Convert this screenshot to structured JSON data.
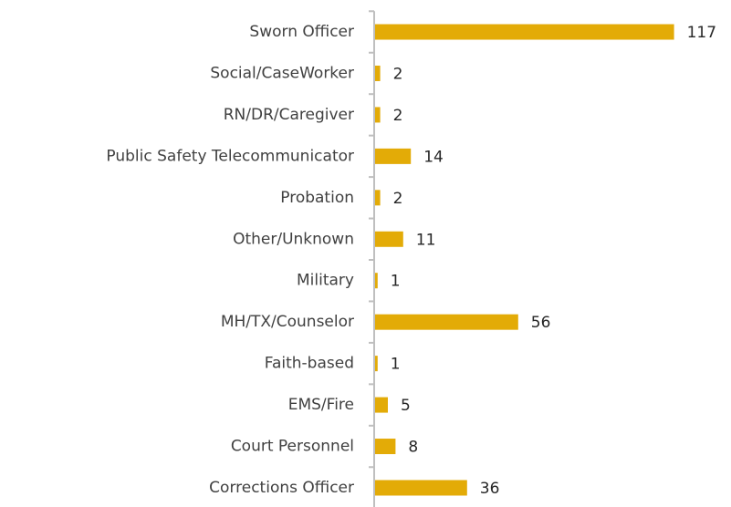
{
  "chart_data": {
    "type": "bar",
    "orientation": "horizontal",
    "categories": [
      "Sworn Officer",
      "Social/CaseWorker",
      "RN/DR/Caregiver",
      "Public Safety Telecommunicator",
      "Probation",
      "Other/Unknown",
      "Military",
      "MH/TX/Counselor",
      "Faith-based",
      "EMS/Fire",
      "Court Personnel",
      "Corrections Officer"
    ],
    "values": [
      117,
      2,
      2,
      14,
      2,
      11,
      1,
      56,
      1,
      5,
      8,
      36
    ],
    "color": "#e3ab07"
  }
}
